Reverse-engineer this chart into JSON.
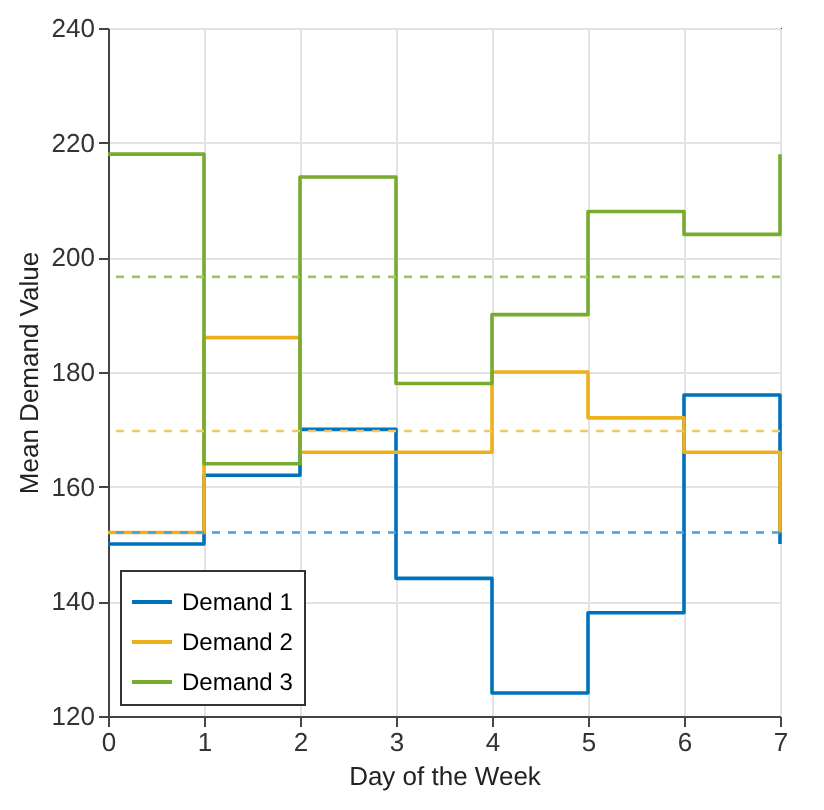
{
  "chart_data": {
    "type": "step",
    "xlabel": "Day of the Week",
    "ylabel": "Mean Demand Value",
    "x": [
      0,
      1,
      2,
      3,
      4,
      5,
      6,
      7
    ],
    "series": [
      {
        "name": "Demand 1",
        "color": "#0072bd",
        "values": [
          150,
          162,
          170,
          144,
          124,
          138,
          176,
          150
        ]
      },
      {
        "name": "Demand 2",
        "color": "#edb120",
        "values": [
          152,
          186,
          166,
          166,
          180,
          172,
          166,
          152
        ]
      },
      {
        "name": "Demand 3",
        "color": "#77ac30",
        "values": [
          218,
          164,
          214,
          178,
          190,
          208,
          204,
          218
        ]
      }
    ],
    "ref_lines": [
      {
        "axis": "y",
        "value": 152,
        "color": "#4a9fd8",
        "line_style": "dashed"
      },
      {
        "axis": "y",
        "value": 169.7,
        "color": "#f2c766",
        "line_style": "dashed"
      },
      {
        "axis": "y",
        "value": 196.6,
        "color": "#9cc66a",
        "line_style": "dashed"
      }
    ],
    "xlim": [
      0,
      7
    ],
    "xticks": [
      0,
      1,
      2,
      3,
      4,
      5,
      6,
      7
    ],
    "ylim": [
      120,
      240
    ],
    "yticks": [
      120,
      140,
      160,
      180,
      200,
      220,
      240
    ],
    "grid": true,
    "legend": "bottom left",
    "line_style": "solid",
    "marker": "none"
  }
}
